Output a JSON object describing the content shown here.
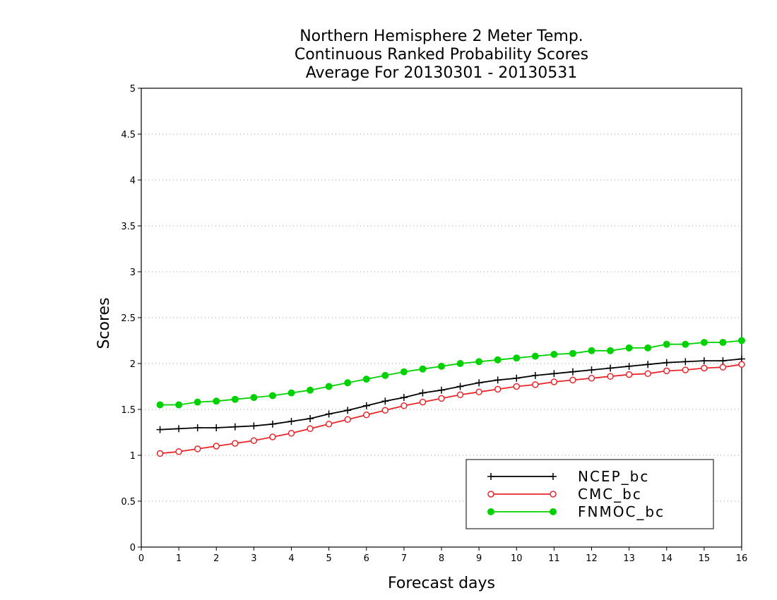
{
  "chart_data": {
    "type": "line",
    "title": [
      "Northern Hemisphere 2 Meter Temp.",
      "Continuous Ranked Probability Scores",
      "Average For 20130301 - 20130531"
    ],
    "xlabel": "Forecast days",
    "ylabel": "Scores",
    "xlim": [
      0,
      16
    ],
    "ylim": [
      0,
      5
    ],
    "xticks": [
      0,
      1,
      2,
      3,
      4,
      5,
      6,
      7,
      8,
      9,
      10,
      11,
      12,
      13,
      14,
      15,
      16
    ],
    "yticks": [
      0,
      0.5,
      1,
      1.5,
      2,
      2.5,
      3,
      3.5,
      4,
      4.5,
      5
    ],
    "grid": "horizontal-dotted",
    "legend_position": "bottom-right",
    "x": [
      0.5,
      1,
      1.5,
      2,
      2.5,
      3,
      3.5,
      4,
      4.5,
      5,
      5.5,
      6,
      6.5,
      7,
      7.5,
      8,
      8.5,
      9,
      9.5,
      10,
      10.5,
      11,
      11.5,
      12,
      12.5,
      13,
      13.5,
      14,
      14.5,
      15,
      15.5,
      16
    ],
    "series": [
      {
        "name": "NCEP_bc",
        "color": "#000000",
        "marker": "plus",
        "values": [
          1.28,
          1.29,
          1.3,
          1.3,
          1.31,
          1.32,
          1.34,
          1.37,
          1.4,
          1.45,
          1.49,
          1.54,
          1.59,
          1.63,
          1.68,
          1.71,
          1.75,
          1.79,
          1.82,
          1.84,
          1.87,
          1.89,
          1.91,
          1.93,
          1.95,
          1.97,
          1.99,
          2.01,
          2.02,
          2.03,
          2.03,
          2.05
        ]
      },
      {
        "name": "CMC_bc",
        "color": "#e8262a",
        "marker": "open-circle",
        "values": [
          1.02,
          1.04,
          1.07,
          1.1,
          1.13,
          1.16,
          1.2,
          1.24,
          1.29,
          1.34,
          1.39,
          1.44,
          1.49,
          1.54,
          1.58,
          1.62,
          1.66,
          1.69,
          1.72,
          1.75,
          1.77,
          1.8,
          1.82,
          1.84,
          1.86,
          1.88,
          1.89,
          1.92,
          1.93,
          1.95,
          1.96,
          1.99
        ]
      },
      {
        "name": "FNMOC_bc",
        "color": "#00d200",
        "marker": "filled-circle",
        "values": [
          1.55,
          1.55,
          1.58,
          1.59,
          1.61,
          1.63,
          1.65,
          1.68,
          1.71,
          1.75,
          1.79,
          1.83,
          1.87,
          1.91,
          1.94,
          1.97,
          2.0,
          2.02,
          2.04,
          2.06,
          2.08,
          2.1,
          2.11,
          2.14,
          2.14,
          2.17,
          2.17,
          2.21,
          2.21,
          2.23,
          2.23,
          2.25
        ]
      }
    ]
  }
}
